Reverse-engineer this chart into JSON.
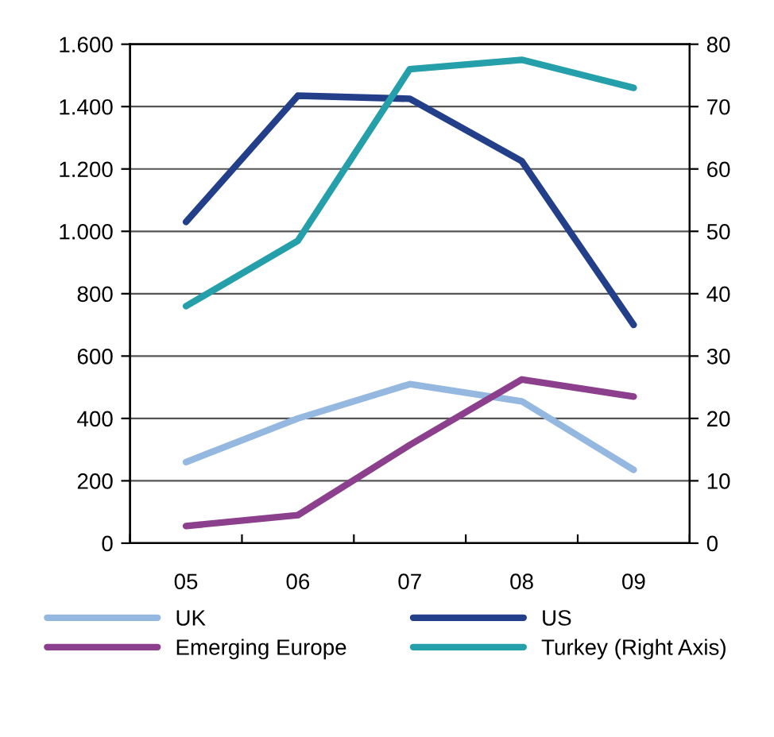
{
  "chart_data": {
    "type": "line",
    "categories": [
      "05",
      "06",
      "07",
      "08",
      "09"
    ],
    "series": [
      {
        "name": "UK",
        "color": "#95b8e0",
        "values": [
          260,
          400,
          510,
          455,
          235
        ]
      },
      {
        "name": "US",
        "color": "#233f8a",
        "values": [
          1030,
          1435,
          1425,
          1225,
          700
        ]
      },
      {
        "name": "Emerging Europe",
        "color": "#8b3f8c",
        "values": [
          55,
          90,
          315,
          525,
          470
        ]
      },
      {
        "name": "Turkey (Right Axis)",
        "color": "#25a0ab",
        "axis": "y2",
        "values": [
          38,
          48.5,
          76,
          77.5,
          73
        ]
      }
    ],
    "ylim": [
      0,
      1600
    ],
    "yticks": [
      0,
      200,
      400,
      600,
      800,
      {
        "value": 1000,
        "label": "1.000"
      },
      {
        "value": 1200,
        "label": "1.200"
      },
      {
        "value": 1400,
        "label": "1.400"
      },
      {
        "value": 1600,
        "label": "1.600"
      }
    ],
    "y2lim": [
      0,
      80
    ],
    "y2ticks": [
      0,
      10,
      20,
      30,
      40,
      50,
      60,
      70,
      80
    ],
    "grid": "y",
    "legend": "bottom",
    "marker": "none",
    "line_style": "solid"
  }
}
